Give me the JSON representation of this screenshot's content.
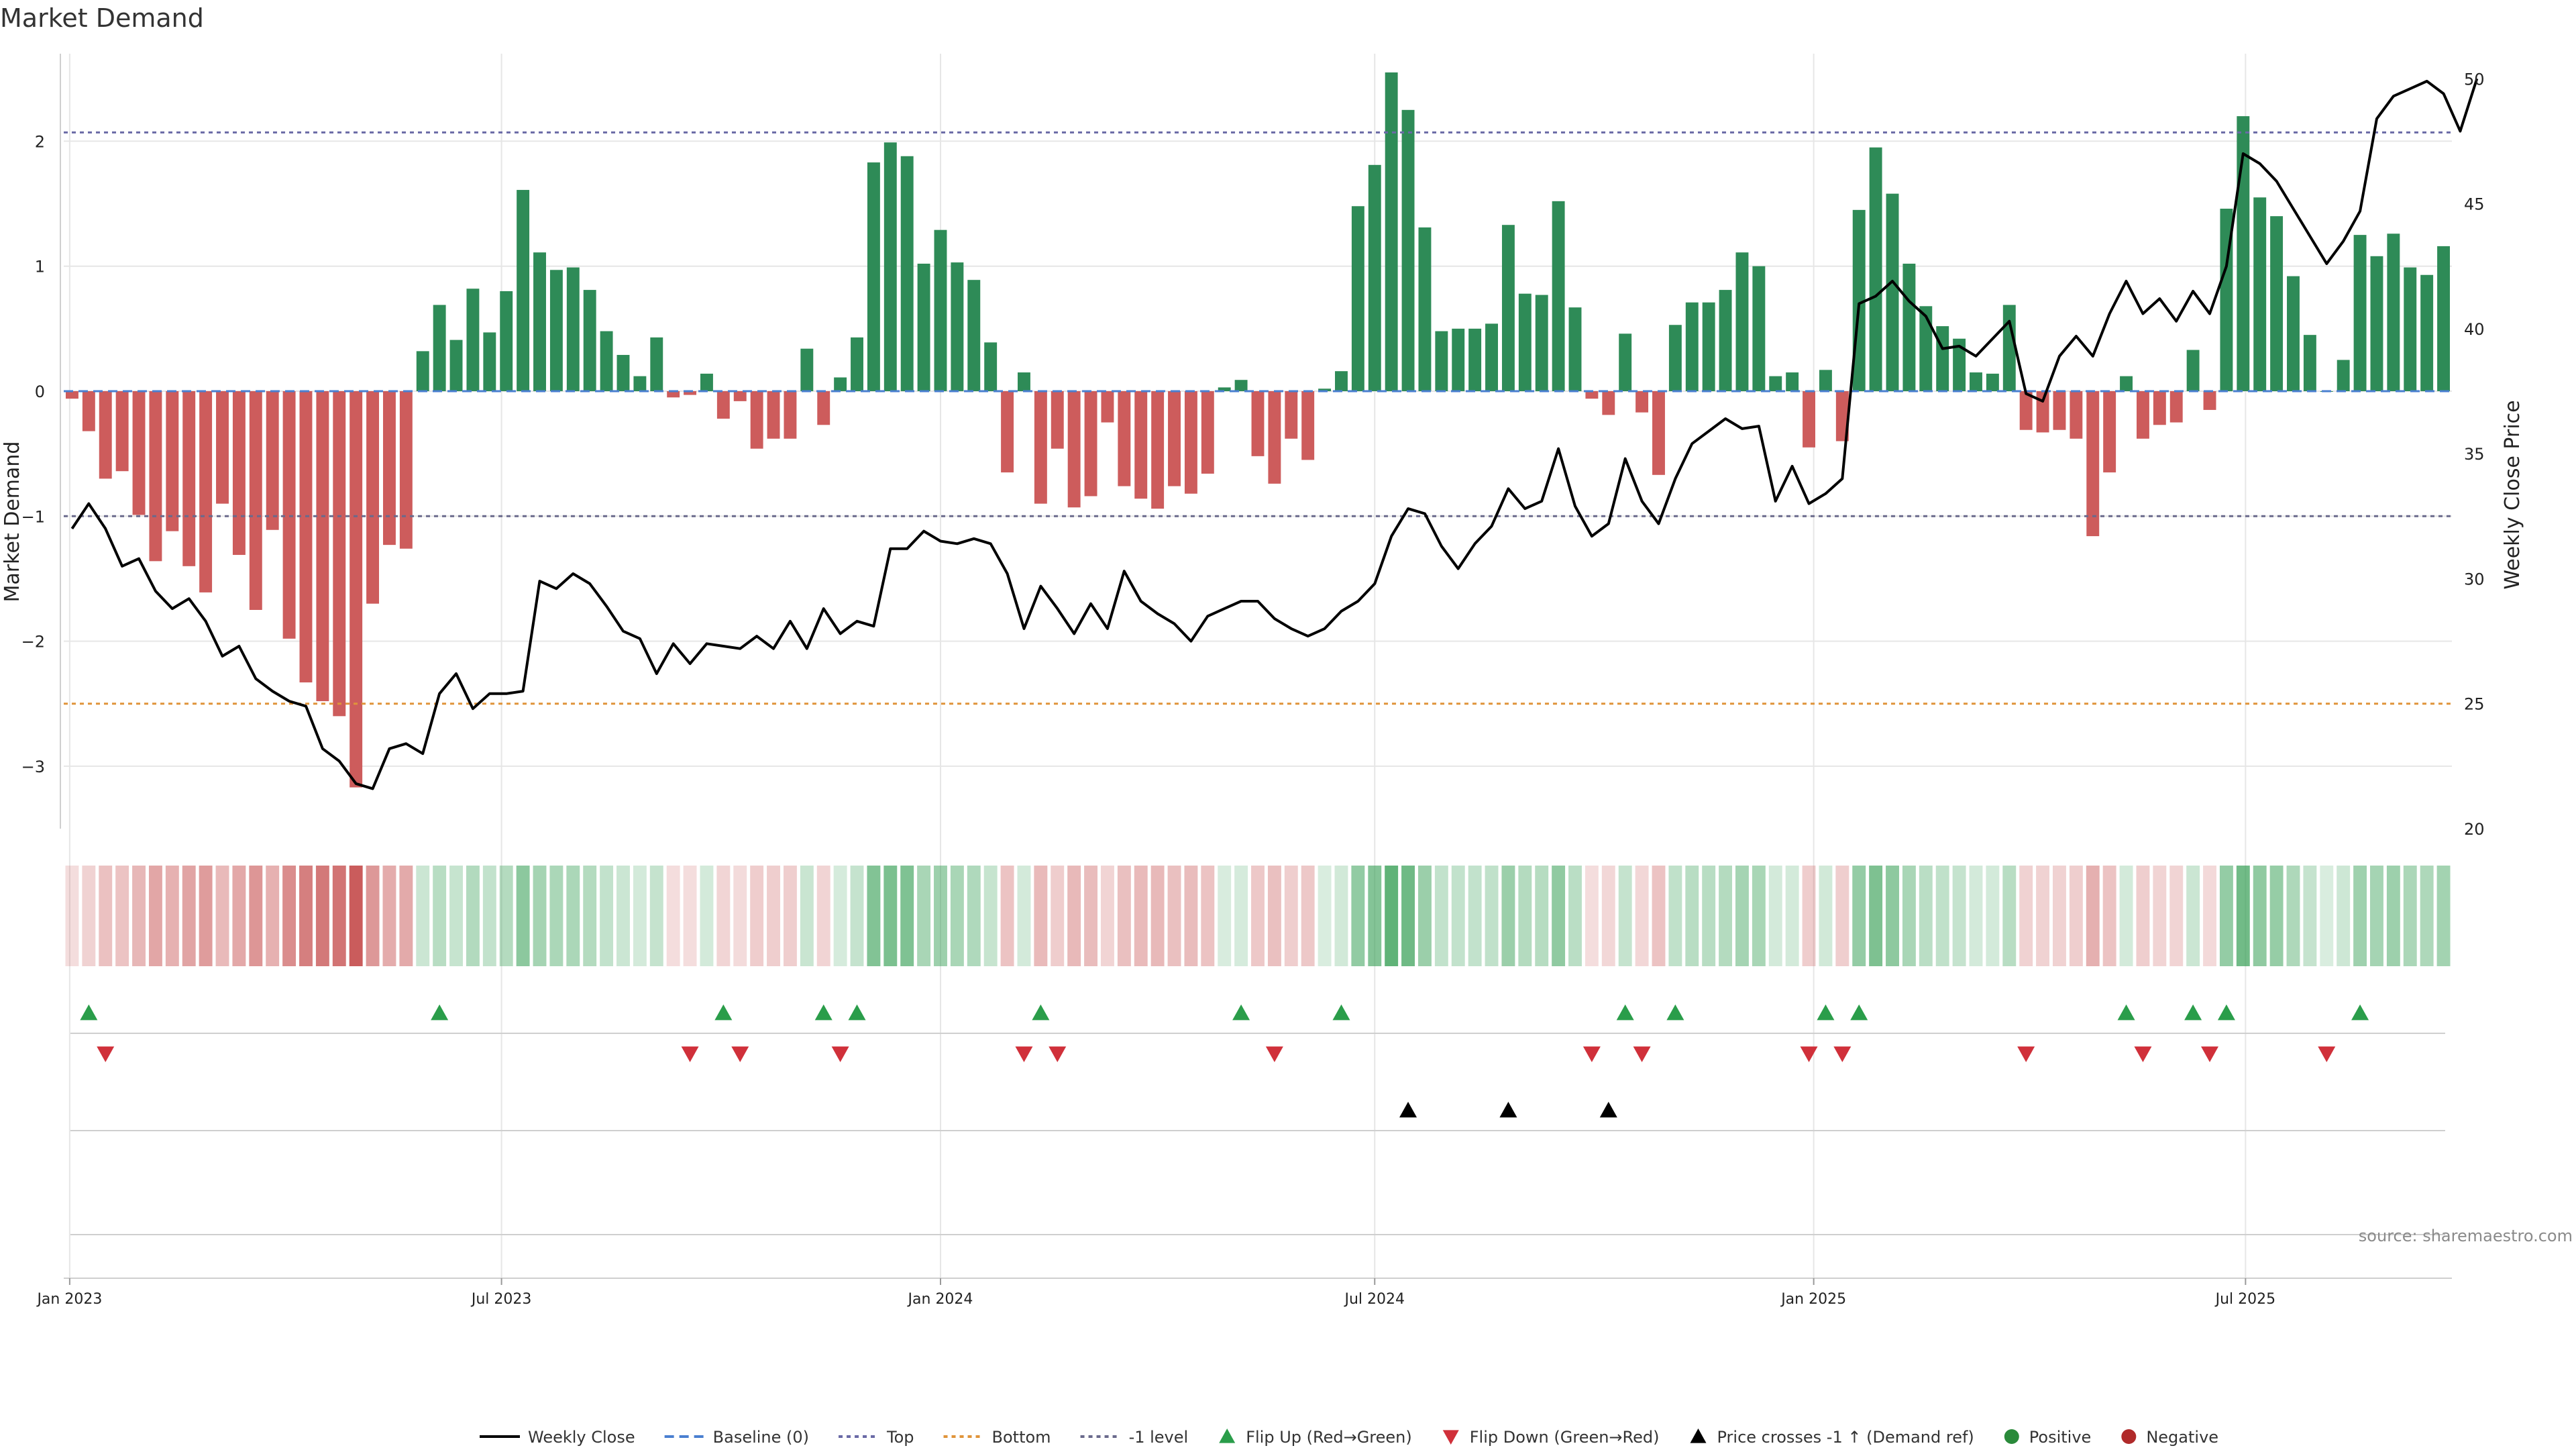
{
  "chart_data": {
    "type": "bar",
    "title": "Market Demand",
    "ylabel_left": "Market Demand",
    "ylabel_right": "Weekly Close Price",
    "ylim_left": [
      -3.5,
      2.7
    ],
    "ylim_right": [
      20,
      51
    ],
    "yticks_left": [
      2,
      1,
      0,
      -1,
      -2,
      -3
    ],
    "yticks_right": [
      50,
      45,
      40,
      35,
      30,
      25,
      20
    ],
    "reference_lines": {
      "top": 2.07,
      "minus_one": -1.0,
      "bottom_price": 25
    },
    "x_start": "2023-01-02",
    "x_step_days": 7,
    "x_tick_labels": [
      {
        "label": "Jan 2023",
        "date": "2023-01-01"
      },
      {
        "label": "Jul 2023",
        "date": "2023-07-01"
      },
      {
        "label": "Jan 2024",
        "date": "2024-01-01"
      },
      {
        "label": "Jul 2024",
        "date": "2024-07-01"
      },
      {
        "label": "Jan 2025",
        "date": "2025-01-01"
      },
      {
        "label": "Jul 2025",
        "date": "2025-07-01"
      }
    ],
    "demand": [
      -0.06,
      -0.32,
      -0.7,
      -0.64,
      -0.99,
      -1.36,
      -1.12,
      -1.4,
      -1.61,
      -0.9,
      -1.31,
      -1.75,
      -1.11,
      -1.98,
      -2.33,
      -2.48,
      -2.6,
      -3.17,
      -1.7,
      -1.23,
      -1.26,
      0.32,
      0.69,
      0.41,
      0.82,
      0.47,
      0.8,
      1.61,
      1.11,
      0.97,
      0.99,
      0.81,
      0.48,
      0.29,
      0.12,
      0.43,
      -0.05,
      -0.03,
      0.14,
      -0.22,
      -0.08,
      -0.46,
      -0.38,
      -0.38,
      0.34,
      -0.27,
      0.11,
      0.43,
      1.83,
      1.99,
      1.88,
      1.02,
      1.29,
      1.03,
      0.89,
      0.39,
      -0.65,
      0.15,
      -0.9,
      -0.46,
      -0.93,
      -0.84,
      -0.25,
      -0.76,
      -0.86,
      -0.94,
      -0.76,
      -0.82,
      -0.66,
      0.03,
      0.09,
      -0.52,
      -0.74,
      -0.38,
      -0.55,
      0.02,
      0.16,
      1.48,
      1.81,
      2.55,
      2.25,
      1.31,
      0.48,
      0.5,
      0.5,
      0.54,
      1.33,
      0.78,
      0.77,
      1.52,
      0.67,
      -0.06,
      -0.19,
      0.46,
      -0.17,
      -0.67,
      0.53,
      0.71,
      0.71,
      0.81,
      1.11,
      1.0,
      0.12,
      0.15,
      -0.45,
      0.17,
      -0.4,
      1.45,
      1.95,
      1.58,
      1.02,
      0.68,
      0.52,
      0.42,
      0.15,
      0.14,
      0.69,
      -0.31,
      -0.33,
      -0.31,
      -0.38,
      -1.16,
      -0.65,
      0.12,
      -0.38,
      -0.27,
      -0.25,
      0.33,
      -0.15,
      1.46,
      2.2,
      1.55,
      1.4,
      0.92,
      0.45,
      0.0,
      0.25,
      1.25,
      1.08,
      1.26,
      0.99,
      0.93,
      1.16
    ],
    "price": [
      32.0,
      33.0,
      32.0,
      30.5,
      30.8,
      29.5,
      28.8,
      29.2,
      28.3,
      26.9,
      27.3,
      26.0,
      25.5,
      25.1,
      24.9,
      23.2,
      22.7,
      21.8,
      21.6,
      23.2,
      23.4,
      23.0,
      25.4,
      26.2,
      24.8,
      25.4,
      25.4,
      25.5,
      29.9,
      29.6,
      30.2,
      29.8,
      28.9,
      27.9,
      27.6,
      26.2,
      27.4,
      26.6,
      27.4,
      27.3,
      27.2,
      27.7,
      27.2,
      28.3,
      27.2,
      28.8,
      27.8,
      28.3,
      28.1,
      31.2,
      31.2,
      31.9,
      31.5,
      31.4,
      31.6,
      31.4,
      30.2,
      28.0,
      29.7,
      28.8,
      27.8,
      29.0,
      28.0,
      30.3,
      29.1,
      28.6,
      28.2,
      27.5,
      28.5,
      28.8,
      29.1,
      29.1,
      28.4,
      28.0,
      27.7,
      28.0,
      28.7,
      29.1,
      29.8,
      31.7,
      32.8,
      32.6,
      31.3,
      30.4,
      31.4,
      32.1,
      33.6,
      32.8,
      33.1,
      35.2,
      32.9,
      31.7,
      32.2,
      34.8,
      33.1,
      32.2,
      34.0,
      35.4,
      35.9,
      36.4,
      36.0,
      36.1,
      33.1,
      34.5,
      33.0,
      33.4,
      34.0,
      41.0,
      41.3,
      41.9,
      41.1,
      40.5,
      39.2,
      39.3,
      38.9,
      39.6,
      40.3,
      37.4,
      37.1,
      38.9,
      39.7,
      38.9,
      40.6,
      41.9,
      40.6,
      41.2,
      40.3,
      41.5,
      40.6,
      42.5,
      47.0,
      46.6,
      45.9,
      44.8,
      43.7,
      42.6,
      43.5,
      44.7,
      48.4,
      49.3,
      49.6,
      49.9,
      49.4,
      47.9,
      50.0
    ],
    "flip_up": [
      1,
      22,
      39,
      45,
      47,
      58,
      70,
      76,
      93,
      96,
      105,
      107,
      123,
      127,
      129,
      137
    ],
    "flip_down": [
      2,
      37,
      40,
      46,
      57,
      59,
      72,
      91,
      94,
      104,
      106,
      117,
      124,
      128,
      135
    ],
    "price_cross": [
      80,
      86,
      92
    ],
    "legend": [
      {
        "label": "Weekly Close",
        "kind": "line",
        "color": "#000000"
      },
      {
        "label": "Baseline (0)",
        "kind": "dashed",
        "color": "#4a7fd0"
      },
      {
        "label": "Top",
        "kind": "dotted",
        "color": "#6a6aa6"
      },
      {
        "label": "Bottom",
        "kind": "dotted",
        "color": "#e0943a"
      },
      {
        "label": "-1 level",
        "kind": "dotted",
        "color": "#6a6a8c"
      },
      {
        "label": "Flip Up (Red→Green)",
        "kind": "tri-up",
        "color": "#2a9d4a"
      },
      {
        "label": "Flip Down (Green→Red)",
        "kind": "tri-down",
        "color": "#d0303a"
      },
      {
        "label": "Price crosses -1 ↑ (Demand ref)",
        "kind": "tri-up",
        "color": "#000000"
      },
      {
        "label": "Positive",
        "kind": "dot",
        "color": "#2a8a3a"
      },
      {
        "label": "Negative",
        "kind": "dot",
        "color": "#b02a2a"
      }
    ],
    "colors": {
      "positive_bar": "#2e8b57",
      "negative_bar": "#cd5c5c",
      "price_line": "#000000",
      "heat_positive": "#2e9b4e",
      "heat_negative": "#c44a4a"
    },
    "source": "source: sharemaestro.com"
  }
}
